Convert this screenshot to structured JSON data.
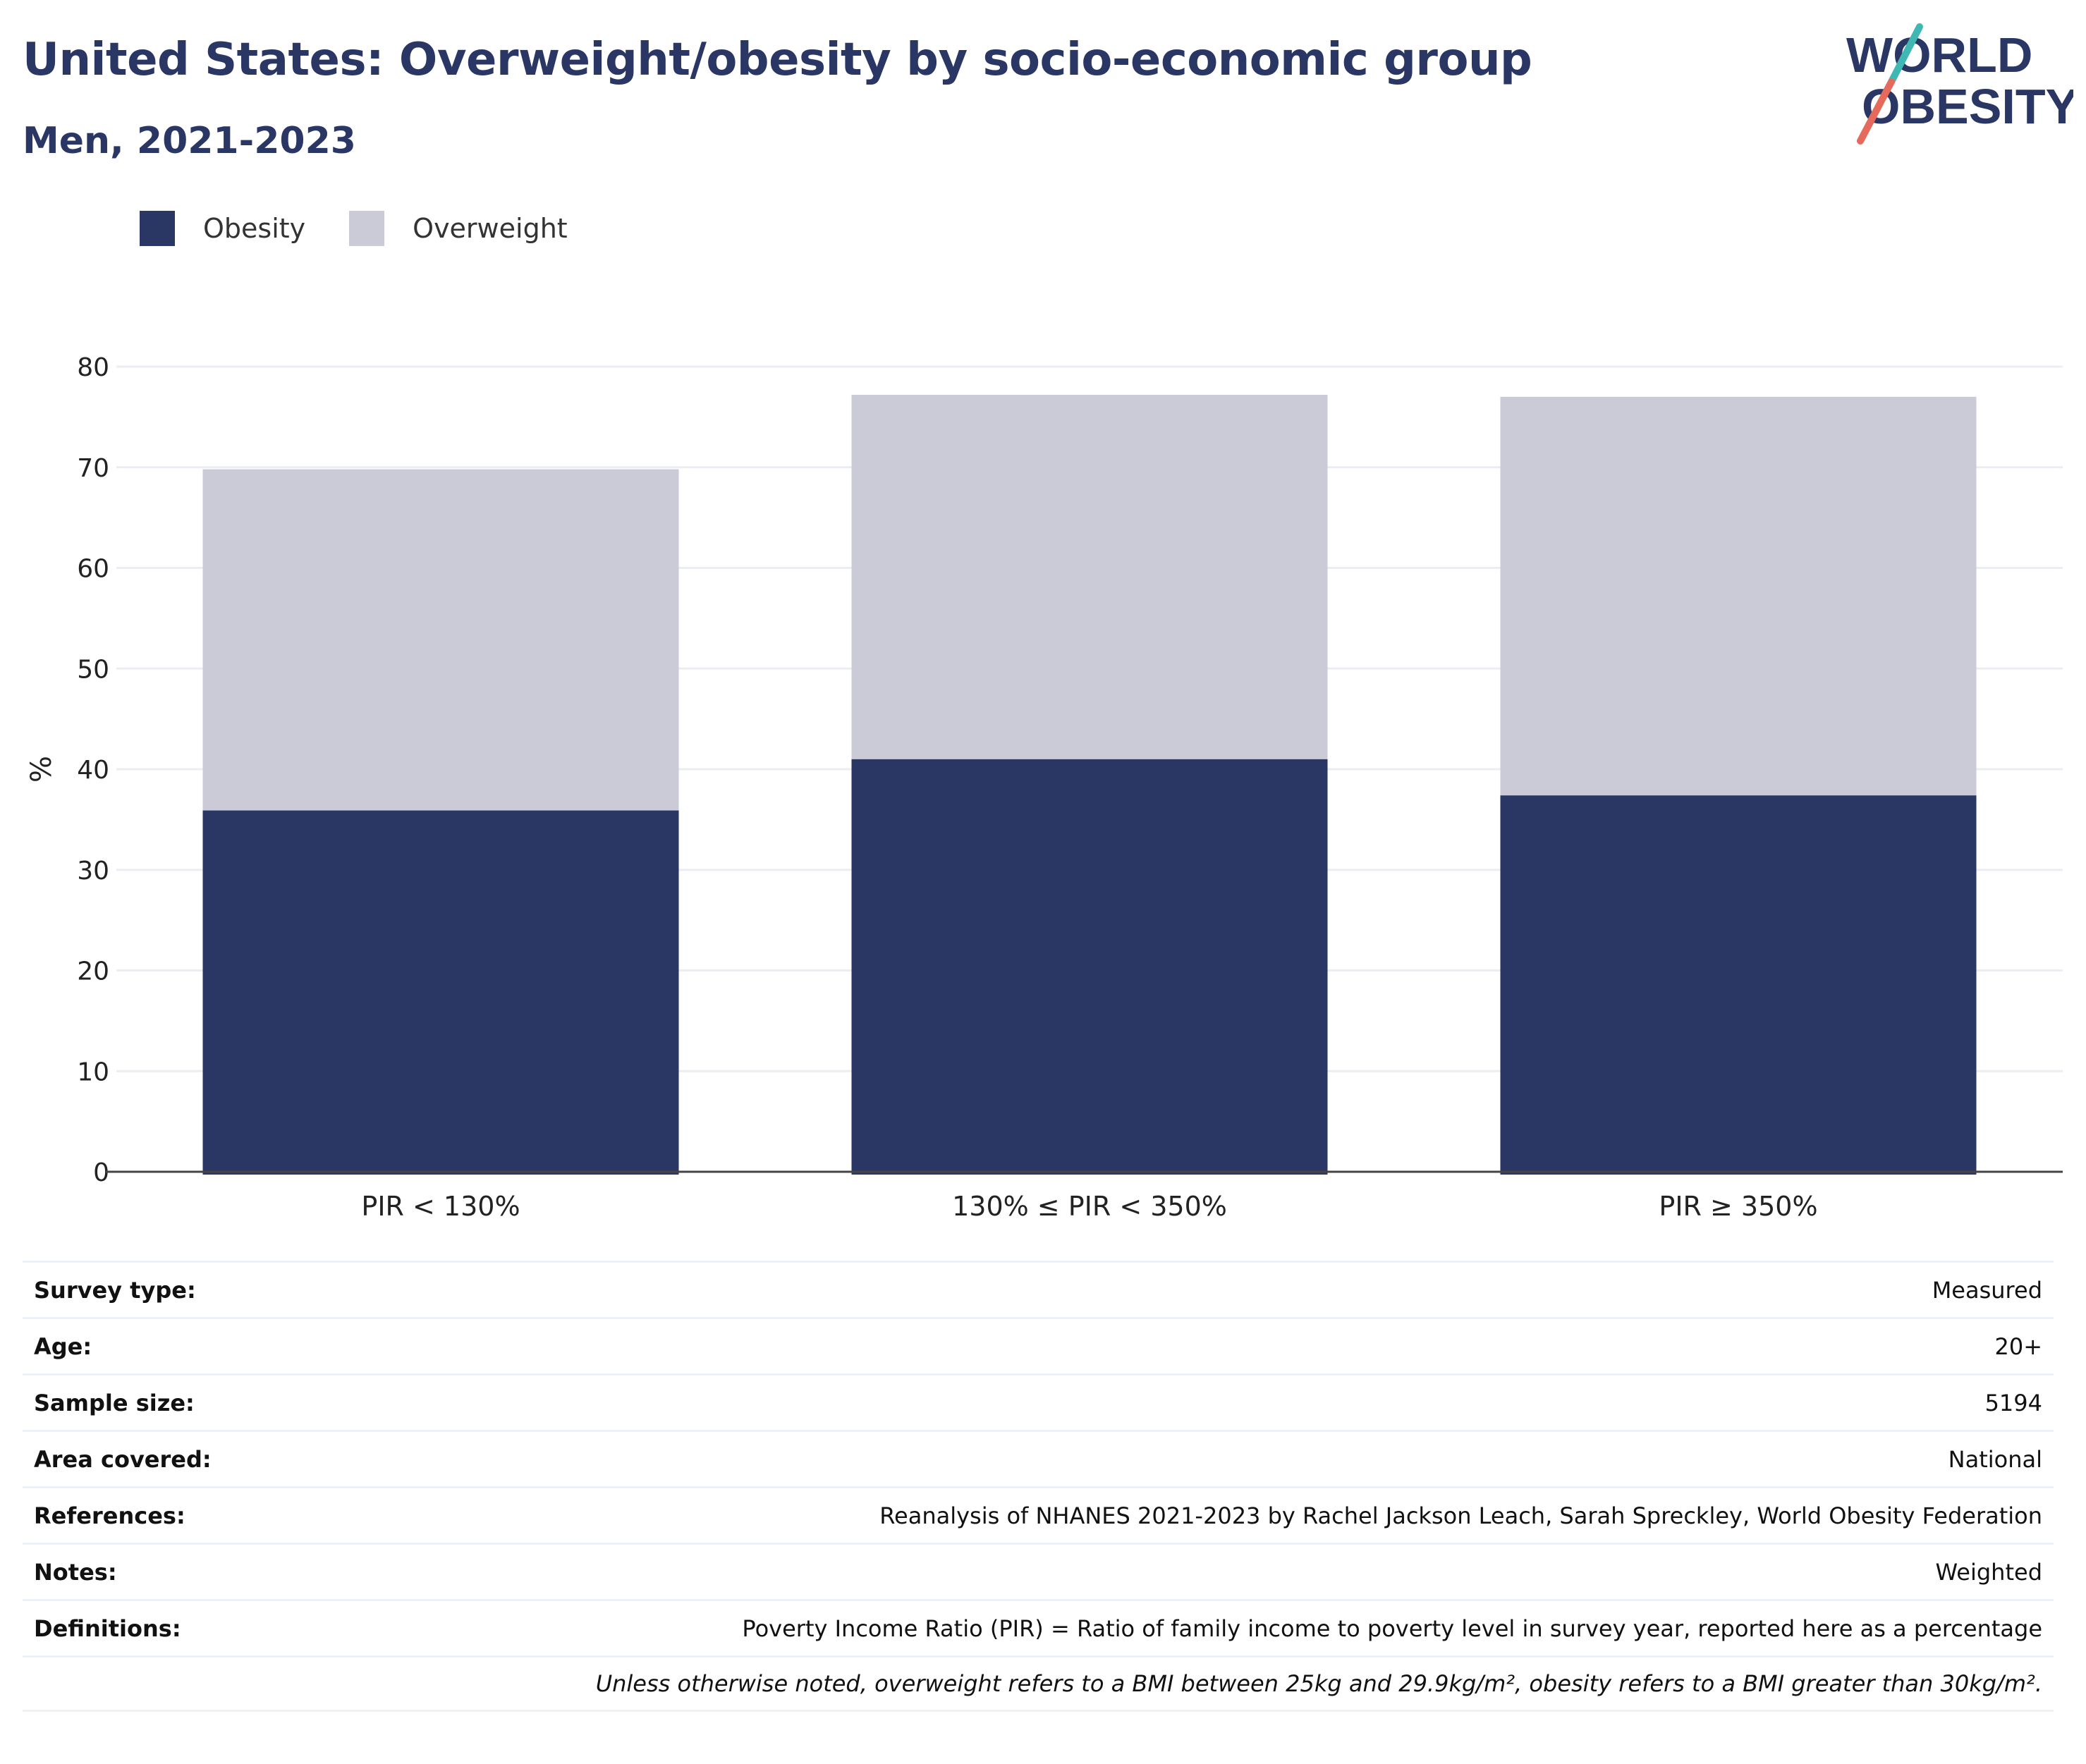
{
  "header": {
    "title": "United States: Overweight/obesity by socio-economic group",
    "subtitle": "Men, 2021-2023",
    "logo_line1": "WORLD",
    "logo_line2": "OBESITY"
  },
  "colors": {
    "obesity": "#2a3664",
    "overweight": "#cacbd6",
    "accent_teal": "#3fb8b4",
    "accent_coral": "#e66a5c"
  },
  "legend": [
    {
      "label": "Obesity",
      "color": "#2a3664"
    },
    {
      "label": "Overweight",
      "color": "#cacbd6"
    }
  ],
  "chart_data": {
    "type": "bar",
    "stacked": true,
    "categories": [
      "PIR < 130%",
      "130% ≤ PIR < 350%",
      "PIR ≥ 350%"
    ],
    "series": [
      {
        "name": "Obesity",
        "values": [
          35.9,
          41.0,
          37.4
        ]
      },
      {
        "name": "Overweight",
        "values": [
          33.9,
          36.2,
          39.6
        ]
      }
    ],
    "ylabel": "%",
    "ylim": [
      0,
      80
    ],
    "yticks": [
      0,
      10,
      20,
      30,
      40,
      50,
      60,
      70,
      80
    ],
    "grid": true,
    "legend_position": "top-left"
  },
  "info_rows": [
    {
      "label": "Survey type:",
      "value": "Measured"
    },
    {
      "label": "Age:",
      "value": "20+"
    },
    {
      "label": "Sample size:",
      "value": "5194"
    },
    {
      "label": "Area covered:",
      "value": "National"
    },
    {
      "label": "References:",
      "value": "Reanalysis of NHANES 2021-2023 by Rachel Jackson Leach, Sarah Spreckley, World Obesity Federation"
    },
    {
      "label": "Notes:",
      "value": "Weighted"
    },
    {
      "label": "Definitions:",
      "value": "Poverty Income Ratio (PIR) = Ratio of family income to poverty level in survey year, reported here as a percentage"
    }
  ],
  "footnote": "Unless otherwise noted, overweight refers to a BMI between 25kg and 29.9kg/m², obesity refers to a BMI greater than 30kg/m²."
}
